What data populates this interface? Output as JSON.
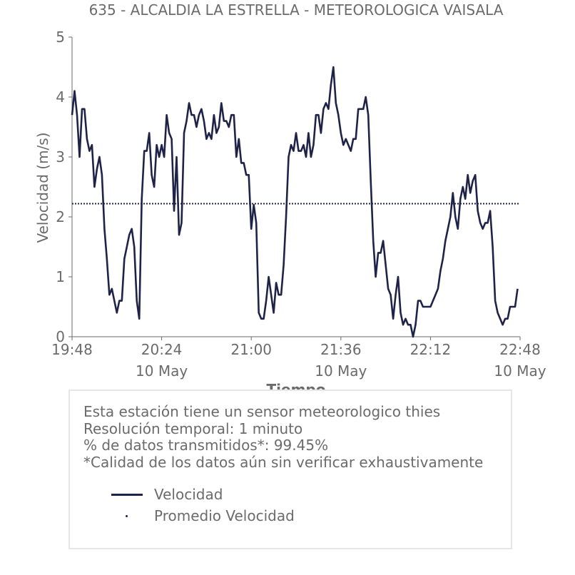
{
  "chart_data": {
    "type": "line",
    "title": "635 - ALCALDIA LA ESTRELLA - METEOROLOGICA VAISALA",
    "xlabel": "Tiempo",
    "ylabel": "Velocidad (m/s)",
    "ylim": [
      0,
      5
    ],
    "yticks": [
      "0",
      "1",
      "2",
      "3",
      "4",
      "5"
    ],
    "xlim": [
      "19:48",
      "22:48"
    ],
    "xticks": [
      {
        "time": "19:48",
        "date": ""
      },
      {
        "time": "20:24",
        "date": "10 May"
      },
      {
        "time": "21:00",
        "date": ""
      },
      {
        "time": "21:36",
        "date": "10 May"
      },
      {
        "time": "22:12",
        "date": ""
      },
      {
        "time": "22:48",
        "date": "10 May"
      }
    ],
    "grid": false,
    "legend_position": "below",
    "series": [
      {
        "name": "Velocidad",
        "color": "#1f2347",
        "style": "solid",
        "points": [
          [
            "19:48",
            3.7
          ],
          [
            "19:49",
            4.1
          ],
          [
            "19:50",
            3.7
          ],
          [
            "19:51",
            3.0
          ],
          [
            "19:52",
            3.8
          ],
          [
            "19:53",
            3.8
          ],
          [
            "19:54",
            3.3
          ],
          [
            "19:55",
            3.1
          ],
          [
            "19:56",
            3.2
          ],
          [
            "19:57",
            2.5
          ],
          [
            "19:58",
            2.8
          ],
          [
            "19:59",
            3.0
          ],
          [
            "20:00",
            2.7
          ],
          [
            "20:01",
            1.8
          ],
          [
            "20:02",
            1.3
          ],
          [
            "20:03",
            0.7
          ],
          [
            "20:04",
            0.8
          ],
          [
            "20:05",
            0.6
          ],
          [
            "20:06",
            0.4
          ],
          [
            "20:07",
            0.6
          ],
          [
            "20:08",
            0.6
          ],
          [
            "20:09",
            1.3
          ],
          [
            "20:10",
            1.5
          ],
          [
            "20:11",
            1.7
          ],
          [
            "20:12",
            1.8
          ],
          [
            "20:13",
            1.5
          ],
          [
            "20:14",
            0.6
          ],
          [
            "20:15",
            0.3
          ],
          [
            "20:16",
            2.3
          ],
          [
            "20:17",
            3.1
          ],
          [
            "20:18",
            3.1
          ],
          [
            "20:19",
            3.4
          ],
          [
            "20:20",
            2.7
          ],
          [
            "20:21",
            2.5
          ],
          [
            "20:22",
            3.2
          ],
          [
            "20:23",
            3.0
          ],
          [
            "20:24",
            3.2
          ],
          [
            "20:25",
            3.0
          ],
          [
            "20:26",
            3.7
          ],
          [
            "20:27",
            3.4
          ],
          [
            "20:28",
            3.3
          ],
          [
            "20:29",
            2.1
          ],
          [
            "20:30",
            3.0
          ],
          [
            "20:31",
            1.7
          ],
          [
            "20:32",
            1.9
          ],
          [
            "20:33",
            3.4
          ],
          [
            "20:34",
            3.6
          ],
          [
            "20:35",
            3.9
          ],
          [
            "20:36",
            3.7
          ],
          [
            "20:37",
            3.7
          ],
          [
            "20:38",
            3.5
          ],
          [
            "20:39",
            3.7
          ],
          [
            "20:40",
            3.8
          ],
          [
            "20:41",
            3.6
          ],
          [
            "20:42",
            3.3
          ],
          [
            "20:43",
            3.4
          ],
          [
            "20:44",
            3.3
          ],
          [
            "20:45",
            3.7
          ],
          [
            "20:46",
            3.4
          ],
          [
            "20:47",
            3.5
          ],
          [
            "20:48",
            3.9
          ],
          [
            "20:49",
            3.6
          ],
          [
            "20:50",
            3.6
          ],
          [
            "20:51",
            3.5
          ],
          [
            "20:52",
            3.7
          ],
          [
            "20:53",
            3.7
          ],
          [
            "20:54",
            3.0
          ],
          [
            "20:55",
            3.3
          ],
          [
            "20:56",
            2.9
          ],
          [
            "20:57",
            2.9
          ],
          [
            "20:58",
            2.7
          ],
          [
            "20:59",
            2.7
          ],
          [
            "21:00",
            1.8
          ],
          [
            "21:01",
            2.2
          ],
          [
            "21:02",
            1.9
          ],
          [
            "21:03",
            0.4
          ],
          [
            "21:04",
            0.3
          ],
          [
            "21:05",
            0.3
          ],
          [
            "21:06",
            0.6
          ],
          [
            "21:07",
            1.0
          ],
          [
            "21:08",
            0.7
          ],
          [
            "21:09",
            0.4
          ],
          [
            "21:10",
            0.9
          ],
          [
            "21:11",
            0.7
          ],
          [
            "21:12",
            0.7
          ],
          [
            "21:13",
            1.2
          ],
          [
            "21:14",
            2.0
          ],
          [
            "21:15",
            3.0
          ],
          [
            "21:16",
            3.2
          ],
          [
            "21:17",
            3.1
          ],
          [
            "21:18",
            3.4
          ],
          [
            "21:19",
            3.1
          ],
          [
            "21:20",
            3.1
          ],
          [
            "21:21",
            3.2
          ],
          [
            "21:22",
            3.0
          ],
          [
            "21:23",
            3.4
          ],
          [
            "21:24",
            3.0
          ],
          [
            "21:25",
            3.2
          ],
          [
            "21:26",
            3.7
          ],
          [
            "21:27",
            3.7
          ],
          [
            "21:28",
            3.4
          ],
          [
            "21:29",
            3.8
          ],
          [
            "21:30",
            3.9
          ],
          [
            "21:31",
            3.8
          ],
          [
            "21:32",
            4.2
          ],
          [
            "21:33",
            4.5
          ],
          [
            "21:34",
            3.9
          ],
          [
            "21:35",
            3.7
          ],
          [
            "21:36",
            3.4
          ],
          [
            "21:37",
            3.2
          ],
          [
            "21:38",
            3.3
          ],
          [
            "21:39",
            3.2
          ],
          [
            "21:40",
            3.1
          ],
          [
            "21:41",
            3.3
          ],
          [
            "21:42",
            3.3
          ],
          [
            "21:43",
            3.8
          ],
          [
            "21:44",
            3.8
          ],
          [
            "21:45",
            3.8
          ],
          [
            "21:46",
            4.0
          ],
          [
            "21:47",
            3.7
          ],
          [
            "21:48",
            2.6
          ],
          [
            "21:49",
            1.6
          ],
          [
            "21:50",
            1.0
          ],
          [
            "21:51",
            1.4
          ],
          [
            "21:52",
            1.4
          ],
          [
            "21:53",
            1.6
          ],
          [
            "21:54",
            1.2
          ],
          [
            "21:55",
            0.8
          ],
          [
            "21:56",
            0.7
          ],
          [
            "21:57",
            0.3
          ],
          [
            "21:58",
            0.7
          ],
          [
            "21:59",
            1.0
          ],
          [
            "22:00",
            0.4
          ],
          [
            "22:01",
            0.2
          ],
          [
            "22:02",
            0.3
          ],
          [
            "22:03",
            0.2
          ],
          [
            "22:04",
            0.2
          ],
          [
            "22:05",
            0.0
          ],
          [
            "22:06",
            0.2
          ],
          [
            "22:07",
            0.6
          ],
          [
            "22:08",
            0.6
          ],
          [
            "22:09",
            0.5
          ],
          [
            "22:10",
            0.5
          ],
          [
            "22:11",
            0.5
          ],
          [
            "22:12",
            0.5
          ],
          [
            "22:13",
            0.6
          ],
          [
            "22:14",
            0.7
          ],
          [
            "22:15",
            0.8
          ],
          [
            "22:16",
            1.1
          ],
          [
            "22:17",
            1.3
          ],
          [
            "22:18",
            1.6
          ],
          [
            "22:19",
            1.8
          ],
          [
            "22:20",
            2.0
          ],
          [
            "22:21",
            2.4
          ],
          [
            "22:22",
            2.0
          ],
          [
            "22:23",
            1.8
          ],
          [
            "22:24",
            2.3
          ],
          [
            "22:25",
            2.5
          ],
          [
            "22:26",
            2.3
          ],
          [
            "22:27",
            2.7
          ],
          [
            "22:28",
            2.4
          ],
          [
            "22:29",
            2.6
          ],
          [
            "22:30",
            2.7
          ],
          [
            "22:31",
            2.1
          ],
          [
            "22:32",
            1.9
          ],
          [
            "22:33",
            1.8
          ],
          [
            "22:34",
            1.9
          ],
          [
            "22:35",
            1.9
          ],
          [
            "22:36",
            2.1
          ],
          [
            "22:37",
            1.5
          ],
          [
            "22:38",
            0.6
          ],
          [
            "22:39",
            0.4
          ],
          [
            "22:40",
            0.3
          ],
          [
            "22:41",
            0.2
          ],
          [
            "22:42",
            0.3
          ],
          [
            "22:43",
            0.3
          ],
          [
            "22:44",
            0.5
          ],
          [
            "22:45",
            0.5
          ],
          [
            "22:46",
            0.5
          ],
          [
            "22:47",
            0.8
          ]
        ]
      },
      {
        "name": "Promedio Velocidad",
        "color": "#1f2347",
        "style": "dotted",
        "value": 2.22
      }
    ]
  },
  "info": {
    "line1": "Esta estación tiene un sensor meteorologico thies",
    "line2": "Resolución temporal: 1 minuto",
    "line3": "% de datos transmitidos*: 99.45%",
    "line4": "*Calidad de los datos aún sin verificar exhaustivamente"
  },
  "legend": {
    "velocidad": "Velocidad",
    "promedio": "Promedio Velocidad"
  },
  "colors": {
    "series": "#1f2347",
    "text": "#6b6b6b",
    "axis": "#6b6b6b",
    "box_border": "#e6e6e6"
  }
}
